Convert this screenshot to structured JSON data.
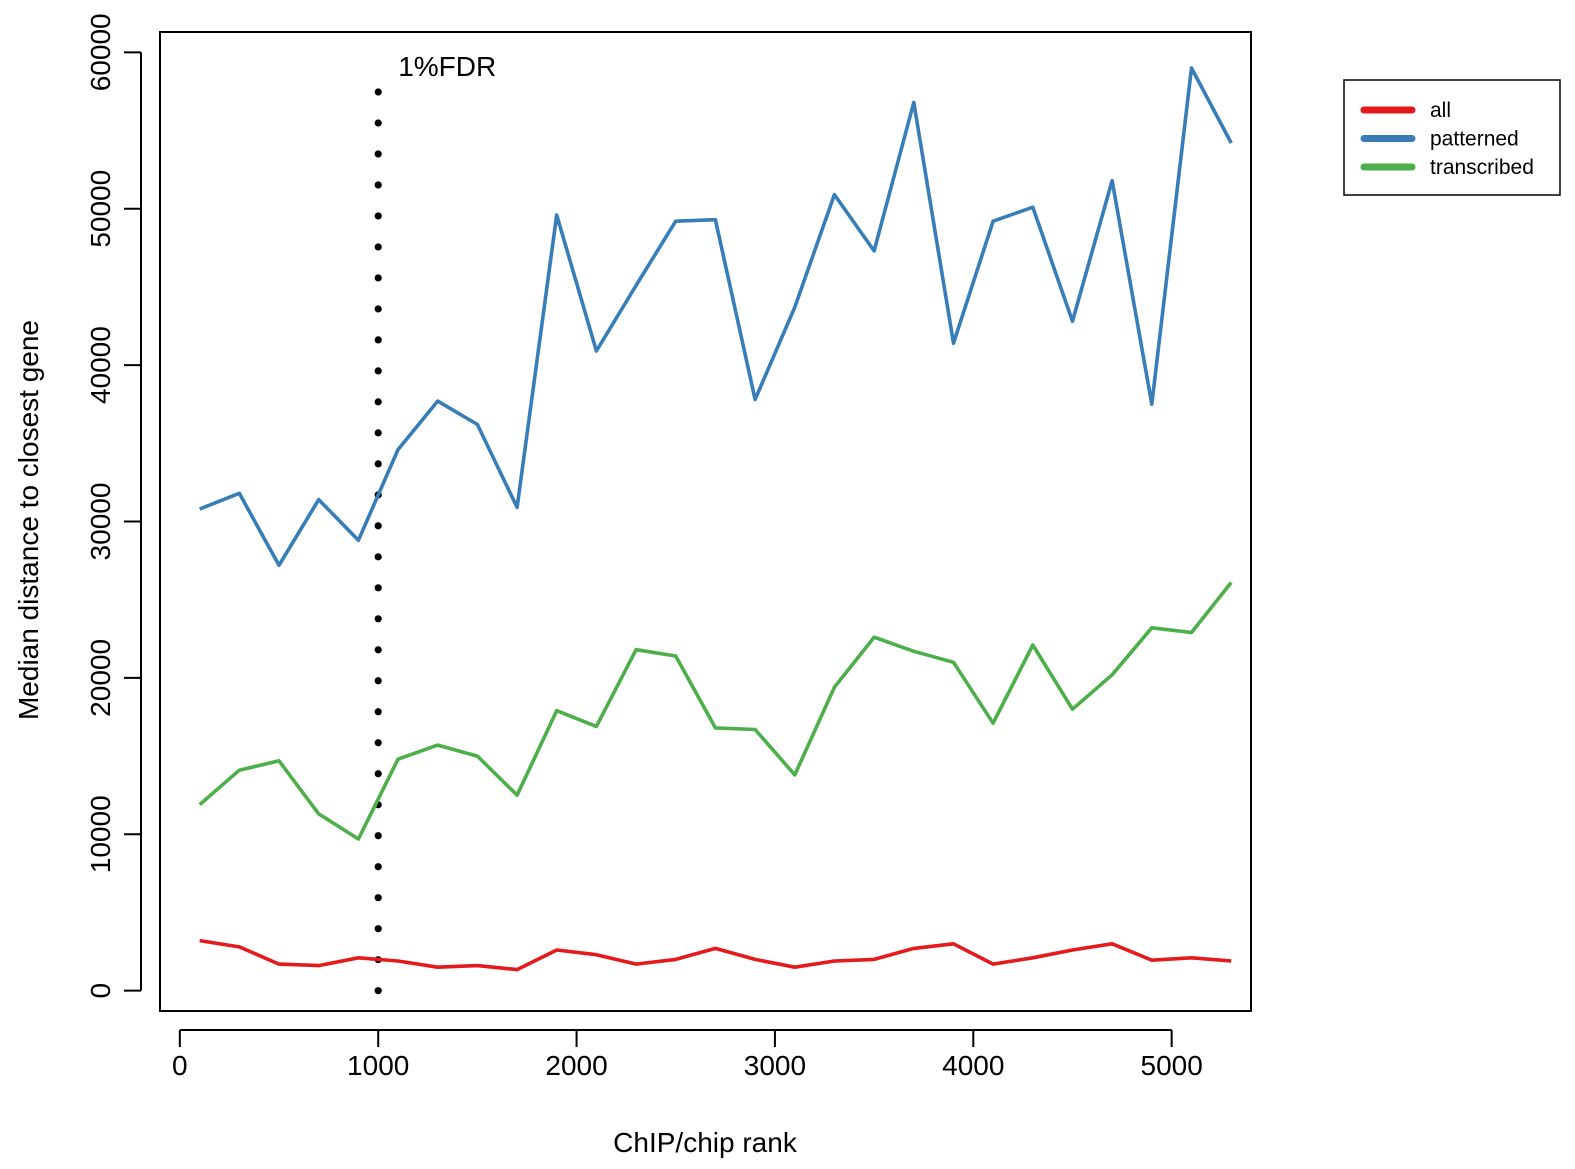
{
  "chart_data": {
    "type": "line",
    "title": "",
    "xlabel": "ChIP/chip rank",
    "ylabel": "Median distance to closest gene",
    "xlim": [
      -100,
      5400
    ],
    "ylim": [
      -1300,
      61300
    ],
    "xticks": [
      0,
      1000,
      2000,
      3000,
      4000,
      5000
    ],
    "xtick_labels": [
      "0",
      "1000",
      "2000",
      "3000",
      "4000",
      "5000"
    ],
    "yticks": [
      0,
      10000,
      20000,
      30000,
      40000,
      50000,
      60000
    ],
    "ytick_labels": [
      "0",
      "10000",
      "20000",
      "30000",
      "40000",
      "50000",
      "60000"
    ],
    "grid": false,
    "legend_position": "outside-top-right",
    "x": [
      100,
      300,
      500,
      700,
      900,
      1100,
      1300,
      1500,
      1700,
      1900,
      2100,
      2300,
      2500,
      2700,
      2900,
      3100,
      3300,
      3500,
      3700,
      3900,
      4100,
      4300,
      4500,
      4700,
      4900,
      5100,
      5300
    ],
    "series": [
      {
        "name": "all",
        "color": "#e41a1c",
        "values": [
          3200,
          2800,
          1700,
          1600,
          2100,
          1900,
          1500,
          1600,
          1350,
          2600,
          2300,
          1700,
          2000,
          2700,
          2000,
          1500,
          1900,
          2000,
          2700,
          3000,
          1700,
          2100,
          2600,
          3000,
          1950,
          2100,
          1900
        ]
      },
      {
        "name": "patterned",
        "color": "#377eb8",
        "values": [
          30800,
          31800,
          27200,
          31400,
          28800,
          34600,
          37700,
          36200,
          30900,
          49600,
          40900,
          45100,
          49200,
          49300,
          37800,
          43700,
          50900,
          47300,
          56800,
          41400,
          49200,
          50100,
          42800,
          51800,
          37500,
          59000,
          54200
        ]
      },
      {
        "name": "transcribed",
        "color": "#4daf4a",
        "values": [
          11900,
          14100,
          14700,
          11300,
          9700,
          14800,
          15700,
          15000,
          12500,
          17900,
          16900,
          21800,
          21400,
          16800,
          16700,
          13800,
          19400,
          22600,
          21700,
          21000,
          17100,
          22100,
          18000,
          20200,
          23200,
          22900,
          26100
        ]
      }
    ],
    "annotations": [
      {
        "label": "1%FDR",
        "x": 1000,
        "style": "dotted-vertical-line"
      }
    ]
  }
}
